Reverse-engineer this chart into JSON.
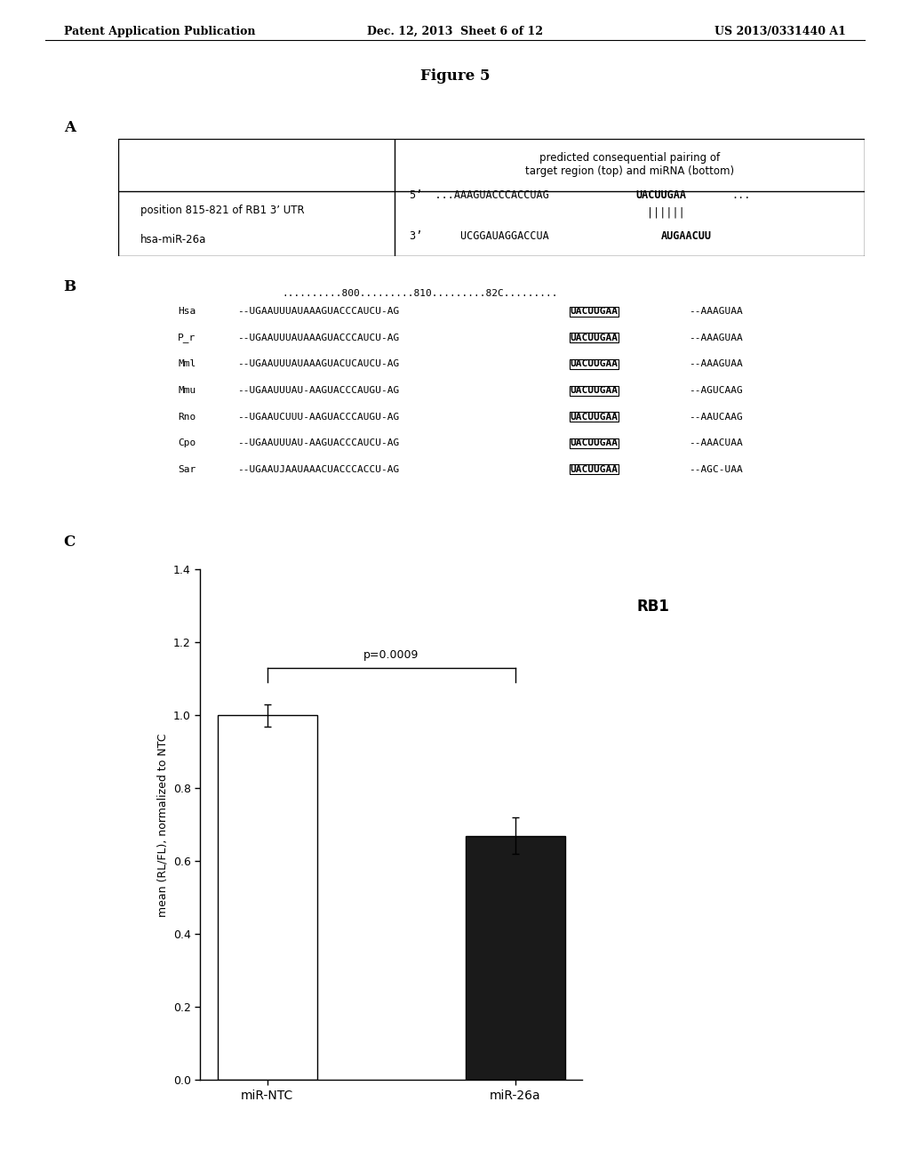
{
  "header_left": "Patent Application Publication",
  "header_center": "Dec. 12, 2013  Sheet 6 of 12",
  "header_right": "US 2013/0331440 A1",
  "figure_title": "Figure 5",
  "section_A_label": "A",
  "section_B_label": "B",
  "section_C_label": "C",
  "table_header_col2": "predicted consequential pairing of\ntarget region (top) and miRNA (bottom)",
  "table_row1_col1": "position 815-821 of RB1 3’ UTR",
  "table_row2_col1": "hsa-miR-26a",
  "section_B_ruler": "..........800.........810.........82C.........",
  "section_B_sequences": [
    {
      "label": "Hsa",
      "seq_pre": "--UGAAUUUAUAAAGUACCCAUCU-AG",
      "seq_bold": "UACUUGAA",
      "seq_end": "--AAAGUAA"
    },
    {
      "label": "P_r",
      "seq_pre": "--UGAAUUUAUAAAGUACCCAUCU-AG",
      "seq_bold": "UACUUGAA",
      "seq_end": "--AAAGUAA"
    },
    {
      "label": "Mml",
      "seq_pre": "--UGAAUUUAUAAAGUACUCAUCU-AG",
      "seq_bold": "UACUUGAA",
      "seq_end": "--AAAGUAA"
    },
    {
      "label": "Mmu",
      "seq_pre": "--UGAAUUUAU-AAGUACCCAUGU-AG",
      "seq_bold": "UACUUGAA",
      "seq_end": "--AGUCAAG"
    },
    {
      "label": "Rno",
      "seq_pre": "--UGAAUCUUU-AAGUACCCAUGU-AG",
      "seq_bold": "UACUUGAA",
      "seq_end": "--AAUCAAG"
    },
    {
      "label": "Cpo",
      "seq_pre": "--UGAAUUUAU-AAGUACCCAUCU-AG",
      "seq_bold": "UACUUGAA",
      "seq_end": "--AAACUAA"
    },
    {
      "label": "Sar",
      "seq_pre": "--UGAAUJAAUAAACUACCCACCU-AG",
      "seq_bold": "UACUUGAA",
      "seq_end": "--AGC-UAA"
    }
  ],
  "bar_categories": [
    "miR-NTC",
    "miR-26a"
  ],
  "bar_values": [
    1.0,
    0.67
  ],
  "bar_errors": [
    0.03,
    0.05
  ],
  "bar_colors": [
    "#ffffff",
    "#1a1a1a"
  ],
  "bar_edge_colors": [
    "#000000",
    "#000000"
  ],
  "ylabel": "mean (RL/FL), normalized to NTC",
  "ylim": [
    0.0,
    1.4
  ],
  "yticks": [
    0.0,
    0.2,
    0.4,
    0.6,
    0.8,
    1.0,
    1.2,
    1.4
  ],
  "pvalue_text": "p=0.0009",
  "chart_title": "RB1",
  "bg_color": "#ffffff",
  "text_color": "#000000"
}
